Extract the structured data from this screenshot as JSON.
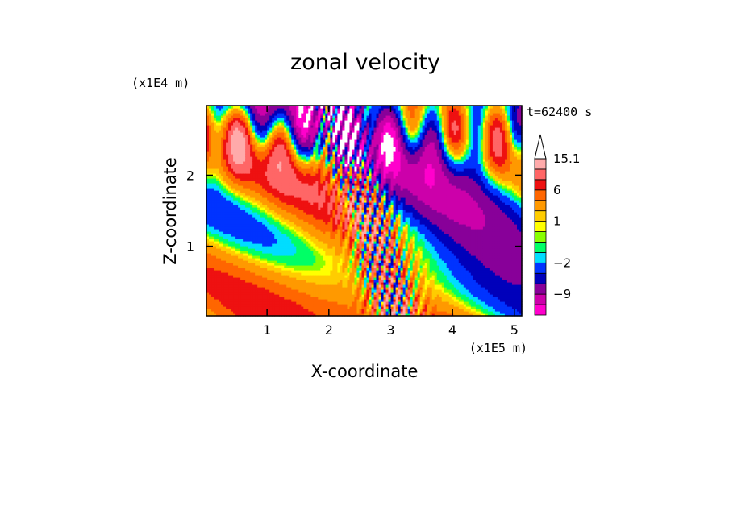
{
  "chart_data": {
    "type": "heatmap",
    "title": "zonal velocity",
    "xlabel": "X-coordinate",
    "ylabel": "Z-coordinate",
    "x_unit": "(x1E5 m)",
    "y_unit": "(x1E4 m)",
    "time_label": "t=62400 s",
    "xlim": [
      0.02,
      5.12
    ],
    "ylim": [
      0.02,
      2.98
    ],
    "x_ticks": [
      1,
      2,
      3,
      4,
      5
    ],
    "y_ticks": [
      1,
      2
    ],
    "grid": false,
    "legend": "right colorbar",
    "colorbar": {
      "labels": [
        {
          "text": "15.1",
          "value": 15.1
        },
        {
          "text": "6",
          "value": 6
        },
        {
          "text": "1",
          "value": 1
        },
        {
          "text": "−2",
          "value": -2
        },
        {
          "text": "−9",
          "value": -9
        }
      ],
      "levels": [
        {
          "lower": -15,
          "upper": -12,
          "color": "#ff00cc"
        },
        {
          "lower": -12,
          "upper": -9,
          "color": "#cc00aa"
        },
        {
          "lower": -9,
          "upper": -6,
          "color": "#880099"
        },
        {
          "lower": -6,
          "upper": -4,
          "color": "#0000bb"
        },
        {
          "lower": -4,
          "upper": -2,
          "color": "#0033ff"
        },
        {
          "lower": -2,
          "upper": -1,
          "color": "#00ddff"
        },
        {
          "lower": -1,
          "upper": 0,
          "color": "#00ff66"
        },
        {
          "lower": 0,
          "upper": 0.5,
          "color": "#88ff00"
        },
        {
          "lower": 0.5,
          "upper": 1,
          "color": "#ffff00"
        },
        {
          "lower": 1,
          "upper": 2,
          "color": "#ffcc00"
        },
        {
          "lower": 2,
          "upper": 4,
          "color": "#ff9900"
        },
        {
          "lower": 4,
          "upper": 6,
          "color": "#ff6600"
        },
        {
          "lower": 6,
          "upper": 8,
          "color": "#ee1111"
        },
        {
          "lower": 8,
          "upper": 11,
          "color": "#ff6666"
        },
        {
          "lower": 11,
          "upper": 15.1,
          "color": "#ffaaaa"
        },
        {
          "lower": 15.1,
          "upper": null,
          "color": "#ffffff"
        }
      ]
    },
    "field_seed": 62400
  }
}
